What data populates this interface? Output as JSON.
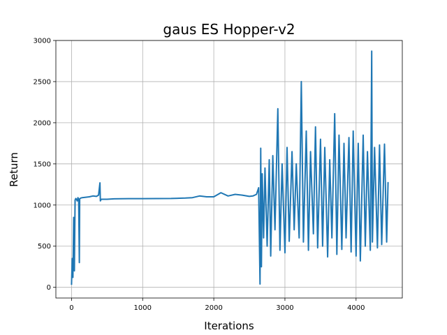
{
  "chart_data": {
    "type": "line",
    "title": "gaus ES Hopper-v2",
    "xlabel": "Iterations",
    "ylabel": "Return",
    "xlim": [
      -220,
      4650
    ],
    "ylim": [
      -130,
      3000
    ],
    "xticks": [
      0,
      1000,
      2000,
      3000,
      4000
    ],
    "yticks": [
      0,
      500,
      1000,
      1500,
      2000,
      2500,
      3000
    ],
    "xtick_labels": [
      "0",
      "1000",
      "2000",
      "3000",
      "4000"
    ],
    "ytick_labels": [
      "0",
      "500",
      "1000",
      "1500",
      "2000",
      "2500",
      "3000"
    ],
    "grid": true,
    "series": [
      {
        "color": "#1f77b4",
        "x": [
          0,
          10,
          20,
          30,
          40,
          50,
          60,
          70,
          80,
          90,
          100,
          110,
          115,
          120,
          130,
          150,
          200,
          250,
          300,
          350,
          380,
          400,
          405,
          410,
          420,
          500,
          600,
          800,
          1000,
          1200,
          1400,
          1600,
          1700,
          1800,
          1900,
          2000,
          2100,
          2200,
          2300,
          2400,
          2500,
          2550,
          2600,
          2630,
          2650,
          2660,
          2670,
          2680,
          2700,
          2720,
          2750,
          2780,
          2800,
          2830,
          2860,
          2900,
          2930,
          2960,
          3000,
          3030,
          3060,
          3100,
          3130,
          3160,
          3200,
          3230,
          3260,
          3300,
          3330,
          3360,
          3400,
          3430,
          3460,
          3500,
          3530,
          3560,
          3600,
          3630,
          3660,
          3700,
          3730,
          3760,
          3800,
          3830,
          3860,
          3900,
          3930,
          3960,
          4000,
          4030,
          4060,
          4100,
          4130,
          4160,
          4200,
          4220,
          4230,
          4260,
          4300,
          4330,
          4360,
          4400,
          4430,
          4450
        ],
        "y": [
          30,
          350,
          120,
          850,
          200,
          1060,
          1080,
          1070,
          1050,
          1090,
          1070,
          300,
          1075,
          1080,
          1085,
          1090,
          1095,
          1100,
          1110,
          1105,
          1120,
          1270,
          1050,
          1060,
          1070,
          1070,
          1075,
          1078,
          1078,
          1079,
          1080,
          1085,
          1090,
          1110,
          1100,
          1100,
          1150,
          1110,
          1130,
          1120,
          1105,
          1110,
          1130,
          1210,
          40,
          1690,
          250,
          1380,
          600,
          1450,
          500,
          1550,
          380,
          1600,
          700,
          2170,
          450,
          1500,
          420,
          1700,
          560,
          1650,
          700,
          1500,
          600,
          2500,
          550,
          1900,
          450,
          1650,
          650,
          1950,
          480,
          1800,
          500,
          1700,
          370,
          1550,
          600,
          2110,
          400,
          1850,
          460,
          1750,
          600,
          1820,
          430,
          1900,
          380,
          1750,
          320,
          1850,
          500,
          1650,
          450,
          2870,
          550,
          1700,
          480,
          1730,
          520,
          1740,
          550,
          1280
        ]
      }
    ]
  }
}
